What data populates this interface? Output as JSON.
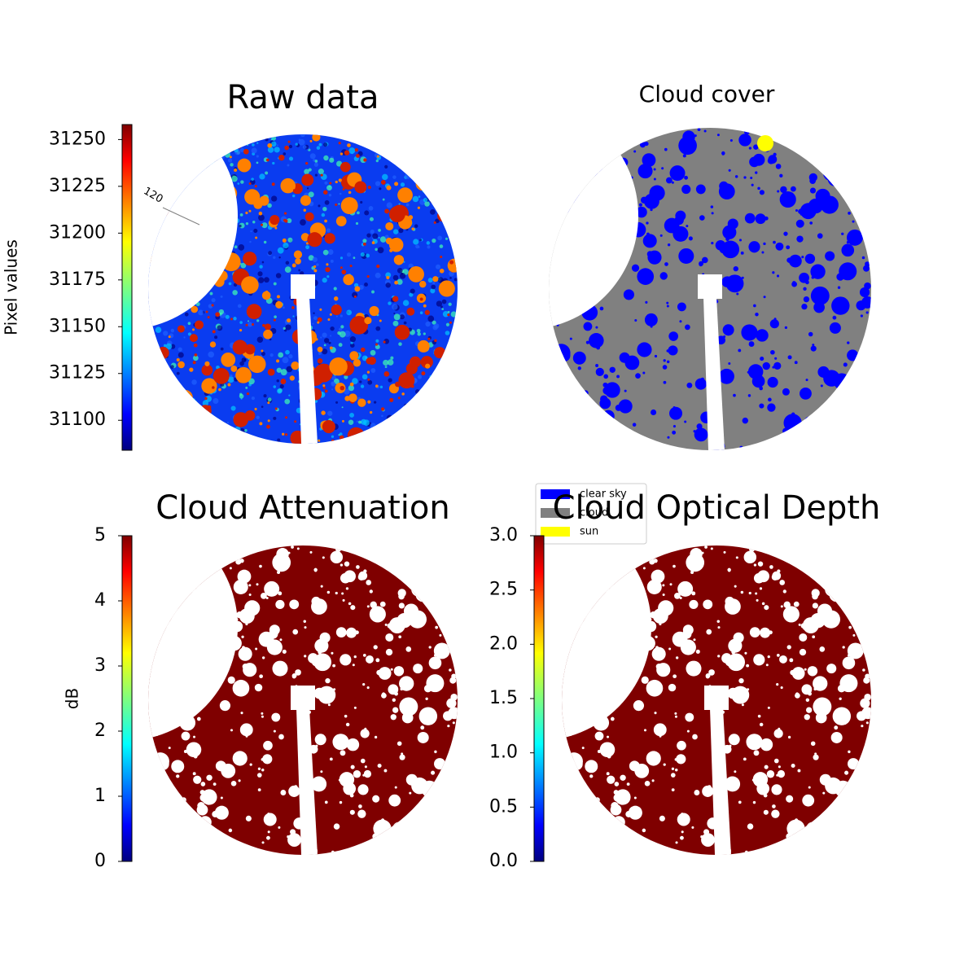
{
  "chart_data": [
    {
      "type": "image",
      "title": "Raw data",
      "annotations": [
        "120"
      ],
      "colorbar": {
        "label": "Pixel values",
        "cmap": "jet",
        "clim": [
          31084,
          31258
        ],
        "ticks": [
          31100,
          31125,
          31150,
          31175,
          31200,
          31225,
          31250
        ]
      }
    },
    {
      "type": "image",
      "title": "Cloud cover",
      "legend": {
        "series": [
          {
            "name": "clear sky",
            "color": "#0000ff"
          },
          {
            "name": "cloud",
            "color": "#808080"
          },
          {
            "name": "sun",
            "color": "#ffff00"
          }
        ]
      }
    },
    {
      "type": "image",
      "title": "Cloud Attenuation",
      "colorbar": {
        "label": "dB",
        "cmap": "jet",
        "clim": [
          0,
          5
        ],
        "ticks": [
          0,
          1,
          2,
          3,
          4,
          5
        ]
      }
    },
    {
      "type": "image",
      "title": "Cloud Optical Depth",
      "colorbar": {
        "cmap": "jet",
        "clim": [
          0,
          3
        ],
        "ticks": [
          {
            "value": 0,
            "label": "0.0"
          },
          {
            "value": 0.5,
            "label": "0.5"
          },
          {
            "value": 1,
            "label": "1.0"
          },
          {
            "value": 1.5,
            "label": "1.5"
          },
          {
            "value": 2,
            "label": "2.0"
          },
          {
            "value": 2.5,
            "label": "2.5"
          },
          {
            "value": 3,
            "label": "3.0"
          }
        ]
      }
    }
  ]
}
